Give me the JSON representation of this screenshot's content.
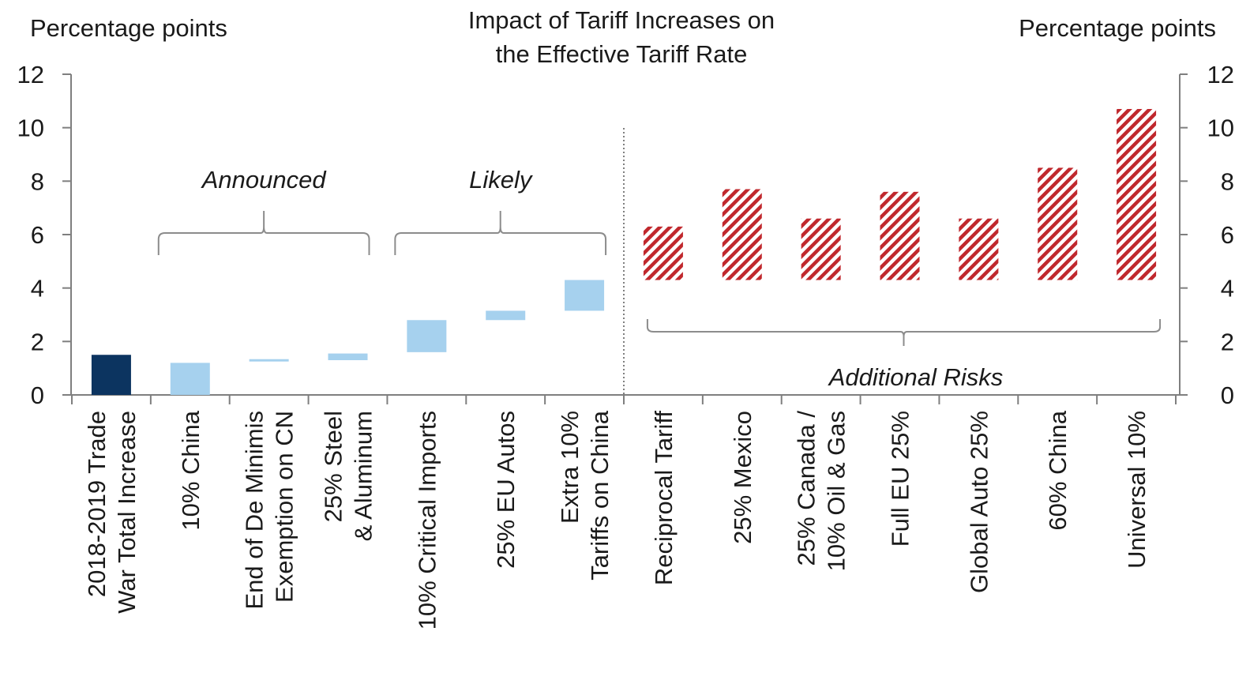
{
  "chart_data": {
    "type": "bar",
    "title": [
      "Impact of Tariff Increases on",
      "the Effective Tariff Rate"
    ],
    "ylabel_left": "Percentage points",
    "ylabel_right": "Percentage points",
    "ylim": [
      0,
      12
    ],
    "yticks": [
      0,
      2,
      4,
      6,
      8,
      10,
      12
    ],
    "categories": [
      [
        "2018-2019 Trade",
        "War Total Increase"
      ],
      [
        "10% China"
      ],
      [
        "End of De Minimis",
        "Exemption on CN"
      ],
      [
        "25% Steel",
        "& Aluminum"
      ],
      [
        "10% Critical Imports"
      ],
      [
        "25% EU Autos"
      ],
      [
        "Extra 10%",
        "Tariffs on China"
      ],
      [
        "Reciprocal Tariff"
      ],
      [
        "25% Mexico"
      ],
      [
        "25% Canada /",
        "10% Oil & Gas"
      ],
      [
        "Full EU 25%"
      ],
      [
        "Global Auto 25%"
      ],
      [
        "60% China"
      ],
      [
        "Universal 10%"
      ]
    ],
    "bars": [
      {
        "base": 0.0,
        "top": 1.5,
        "style": "solid-dark"
      },
      {
        "base": 0.0,
        "top": 1.2,
        "style": "light"
      },
      {
        "base": 1.25,
        "top": 1.3,
        "style": "light"
      },
      {
        "base": 1.3,
        "top": 1.55,
        "style": "light"
      },
      {
        "base": 1.6,
        "top": 2.8,
        "style": "light"
      },
      {
        "base": 2.8,
        "top": 3.15,
        "style": "light"
      },
      {
        "base": 3.15,
        "top": 4.3,
        "style": "light"
      },
      {
        "base": 4.3,
        "top": 6.3,
        "style": "hatched"
      },
      {
        "base": 4.3,
        "top": 7.7,
        "style": "hatched"
      },
      {
        "base": 4.3,
        "top": 6.6,
        "style": "hatched"
      },
      {
        "base": 4.3,
        "top": 7.6,
        "style": "hatched"
      },
      {
        "base": 4.3,
        "top": 6.6,
        "style": "hatched"
      },
      {
        "base": 4.3,
        "top": 8.5,
        "style": "hatched"
      },
      {
        "base": 4.3,
        "top": 10.7,
        "style": "hatched"
      }
    ],
    "groups": [
      {
        "label": "Announced",
        "from": 1,
        "to": 3,
        "position": "above"
      },
      {
        "label": "Likely",
        "from": 4,
        "to": 6,
        "position": "above"
      },
      {
        "label": "Additional Risks",
        "from": 7,
        "to": 13,
        "position": "below"
      }
    ],
    "divider_after_index": 6,
    "colors": {
      "solid-dark": "#0c3460",
      "light": "#a6d1ee",
      "hatched": "#c0282d",
      "axis": "#7f7f7f",
      "bracket": "#8c8c8c"
    },
    "grid": false
  }
}
